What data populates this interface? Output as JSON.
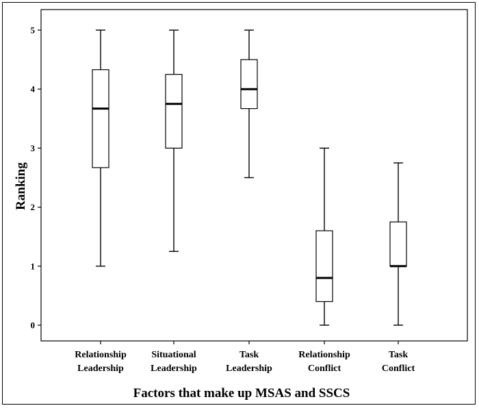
{
  "chart_data": {
    "type": "boxplot",
    "title": "",
    "xlabel": "Factors that make up MSAS and SSCS",
    "ylabel": "Ranking",
    "ylim": [
      -0.25,
      5.15
    ],
    "yticks": [
      0,
      1,
      2,
      3,
      4,
      5
    ],
    "grid": false,
    "categories": [
      [
        "Relationship",
        "Leadership"
      ],
      [
        "Situational",
        "Leadership"
      ],
      [
        "Task",
        "Leadership"
      ],
      [
        "Relationship",
        "Conflict"
      ],
      [
        "Task",
        "Conflict"
      ]
    ],
    "boxes": [
      {
        "min": 1.0,
        "q1": 2.67,
        "median": 3.67,
        "q3": 4.33,
        "max": 5.0
      },
      {
        "min": 1.25,
        "q1": 3.0,
        "median": 3.75,
        "q3": 4.25,
        "max": 5.0
      },
      {
        "min": 2.5,
        "q1": 3.67,
        "median": 4.0,
        "q3": 4.5,
        "max": 5.0
      },
      {
        "min": 0.0,
        "q1": 0.4,
        "median": 0.8,
        "q3": 1.6,
        "max": 3.0
      },
      {
        "min": 0.0,
        "q1": 1.0,
        "median": 1.0,
        "q3": 1.75,
        "max": 2.75
      }
    ]
  }
}
